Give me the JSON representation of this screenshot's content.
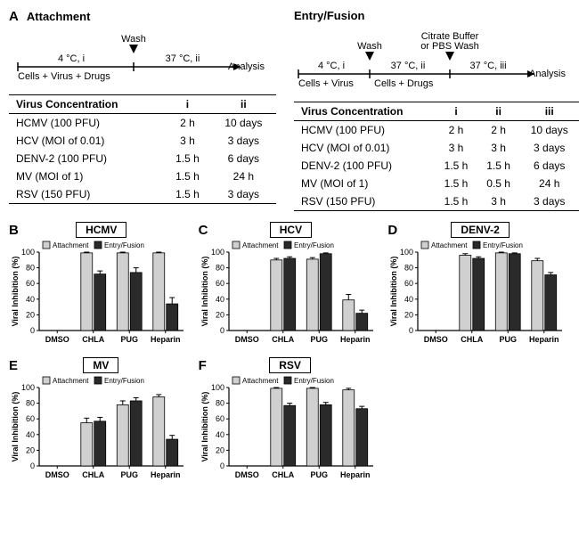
{
  "panelA": {
    "label": "A",
    "attachment": {
      "title": "Attachment",
      "timeline": {
        "wash_label": "Wash",
        "seg1_top": "4 °C, i",
        "seg1_bottom": "Cells + Virus + Drugs",
        "seg2_top": "37 °C, ii",
        "end_label": "Analysis"
      },
      "tableHeader": [
        "Virus Concentration",
        "i",
        "ii"
      ],
      "tableRows": [
        [
          "HCMV (100 PFU)",
          "2 h",
          "10 days"
        ],
        [
          "HCV (MOI of 0.01)",
          "3 h",
          "3 days"
        ],
        [
          "DENV-2 (100 PFU)",
          "1.5 h",
          "6 days"
        ],
        [
          "MV (MOI of 1)",
          "1.5 h",
          "24 h"
        ],
        [
          "RSV (150 PFU)",
          "1.5 h",
          "3 days"
        ]
      ]
    },
    "entry": {
      "title": "Entry/Fusion",
      "timeline": {
        "wash_label": "Wash",
        "citrate_label_l1": "Citrate Buffer",
        "citrate_label_l2": "or PBS Wash",
        "seg1_top": "4 °C, i",
        "seg1_bottom": "Cells + Virus",
        "seg2_top": "37 °C, ii",
        "seg2_bottom": "Cells + Drugs",
        "seg3_top": "37 °C, iii",
        "end_label": "Analysis"
      },
      "tableHeader": [
        "Virus Concentration",
        "i",
        "ii",
        "iii"
      ],
      "tableRows": [
        [
          "HCMV (100 PFU)",
          "2 h",
          "2 h",
          "10 days"
        ],
        [
          "HCV (MOI of 0.01)",
          "3 h",
          "3 h",
          "3 days"
        ],
        [
          "DENV-2 (100 PFU)",
          "1.5 h",
          "1.5 h",
          "6 days"
        ],
        [
          "MV (MOI of 1)",
          "1.5 h",
          "0.5 h",
          "24 h"
        ],
        [
          "RSV (150 PFU)",
          "1.5 h",
          "3 h",
          "3 days"
        ]
      ]
    }
  },
  "chartCommon": {
    "ylabel": "Viral Inhibition (%)",
    "ylim": [
      0,
      100
    ],
    "ytick_step": 20,
    "categories": [
      "DMSO",
      "CHLA",
      "PUG",
      "Heparin"
    ],
    "legend": [
      "Attachment",
      "Entry/Fusion"
    ],
    "colors": {
      "attachment": "#d0d0d0",
      "entry": "#2a2a2a",
      "border": "#000000",
      "background": "#ffffff"
    },
    "bar_width": 0.32,
    "err_cap": 3
  },
  "charts": {
    "B": {
      "title": "HCMV",
      "data": [
        {
          "att": 0,
          "att_err": 0,
          "ent": 0,
          "ent_err": 0
        },
        {
          "att": 99,
          "att_err": 1,
          "ent": 72,
          "ent_err": 4
        },
        {
          "att": 99,
          "att_err": 1,
          "ent": 74,
          "ent_err": 6
        },
        {
          "att": 99,
          "att_err": 1,
          "ent": 34,
          "ent_err": 8
        }
      ]
    },
    "C": {
      "title": "HCV",
      "data": [
        {
          "att": 0,
          "att_err": 0,
          "ent": 0,
          "ent_err": 0
        },
        {
          "att": 90,
          "att_err": 2,
          "ent": 92,
          "ent_err": 2
        },
        {
          "att": 91,
          "att_err": 2,
          "ent": 98,
          "ent_err": 1
        },
        {
          "att": 39,
          "att_err": 7,
          "ent": 22,
          "ent_err": 4
        }
      ]
    },
    "D": {
      "title": "DENV-2",
      "data": [
        {
          "att": 0,
          "att_err": 0,
          "ent": 0,
          "ent_err": 0
        },
        {
          "att": 96,
          "att_err": 2,
          "ent": 92,
          "ent_err": 2
        },
        {
          "att": 99,
          "att_err": 1,
          "ent": 98,
          "ent_err": 1
        },
        {
          "att": 89,
          "att_err": 3,
          "ent": 71,
          "ent_err": 3
        }
      ]
    },
    "E": {
      "title": "MV",
      "data": [
        {
          "att": 0,
          "att_err": 0,
          "ent": 0,
          "ent_err": 0
        },
        {
          "att": 55,
          "att_err": 6,
          "ent": 57,
          "ent_err": 5
        },
        {
          "att": 78,
          "att_err": 5,
          "ent": 83,
          "ent_err": 4
        },
        {
          "att": 88,
          "att_err": 3,
          "ent": 34,
          "ent_err": 5
        }
      ]
    },
    "F": {
      "title": "RSV",
      "data": [
        {
          "att": 0,
          "att_err": 0,
          "ent": 0,
          "ent_err": 0
        },
        {
          "att": 99,
          "att_err": 1,
          "ent": 77,
          "ent_err": 3
        },
        {
          "att": 99,
          "att_err": 1,
          "ent": 78,
          "ent_err": 3
        },
        {
          "att": 97,
          "att_err": 2,
          "ent": 73,
          "ent_err": 3
        }
      ]
    }
  }
}
